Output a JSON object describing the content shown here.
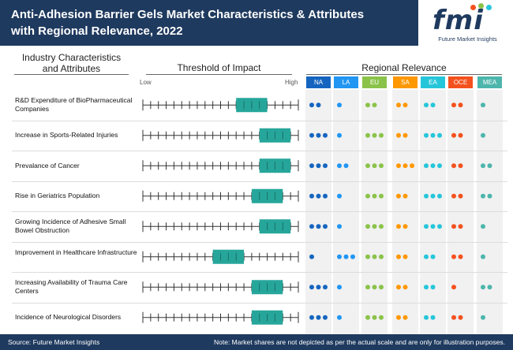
{
  "title": "Anti-Adhesion Barrier Gels Market Characteristics & Attributes with Regional Relevance, 2022",
  "logo": {
    "mark": "fmi",
    "subtitle": "Future Market Insights"
  },
  "sections": {
    "characteristics": "Industry Characteristics and Attributes",
    "threshold": "Threshold of Impact",
    "regional": "Regional Relevance"
  },
  "scale": {
    "low": "Low",
    "high": "High"
  },
  "colors": {
    "header_bg": "#1f3a5f",
    "bar": "#26a69a"
  },
  "chart_data": {
    "type": "table",
    "title": "Anti-Adhesion Barrier Gels Market Characteristics & Attributes with Regional Relevance, 2022",
    "threshold_scale": {
      "min": 0,
      "max": 20,
      "low_label": "Low",
      "high_label": "High"
    },
    "regions": [
      {
        "name": "NA",
        "color": "#1565c0"
      },
      {
        "name": "LA",
        "color": "#2196f3"
      },
      {
        "name": "EU",
        "color": "#8bc34a"
      },
      {
        "name": "SA",
        "color": "#ff9800"
      },
      {
        "name": "EA",
        "color": "#26c6da"
      },
      {
        "name": "OCE",
        "color": "#f4511e"
      },
      {
        "name": "MEA",
        "color": "#4db6ac"
      }
    ],
    "rows": [
      {
        "label": "R&D Expenditure of BioPharmaceutical Companies",
        "threshold": [
          12,
          16
        ],
        "relevance": [
          2,
          1,
          2,
          2,
          2,
          2,
          1
        ]
      },
      {
        "label": "Increase in Sports-Related Injuries",
        "threshold": [
          15,
          19
        ],
        "relevance": [
          3,
          1,
          3,
          2,
          3,
          2,
          1
        ]
      },
      {
        "label": "Prevalance of Cancer",
        "threshold": [
          15,
          19
        ],
        "relevance": [
          3,
          2,
          3,
          3,
          3,
          2,
          2
        ]
      },
      {
        "label": "Rise in Geriatrics Population",
        "threshold": [
          14,
          18
        ],
        "relevance": [
          3,
          1,
          3,
          2,
          3,
          2,
          2
        ]
      },
      {
        "label": "Growing Incidence of Adhesive Small Bowel Obstruction",
        "threshold": [
          15,
          19
        ],
        "relevance": [
          3,
          1,
          3,
          2,
          3,
          2,
          1
        ]
      },
      {
        "label": "Improvement in Healthcare Infrastructure",
        "threshold": [
          9,
          13
        ],
        "relevance": [
          1,
          3,
          3,
          2,
          2,
          2,
          1
        ]
      },
      {
        "label": "Increasing Availability of Trauma Care Centers",
        "threshold": [
          14,
          18
        ],
        "relevance": [
          3,
          1,
          3,
          2,
          2,
          1,
          2
        ]
      },
      {
        "label": "Incidence of Neurological Disorders",
        "threshold": [
          14,
          18
        ],
        "relevance": [
          3,
          1,
          3,
          2,
          2,
          2,
          1
        ]
      }
    ]
  },
  "footer": {
    "source": "Source: Future Market Insights",
    "note": "Note: Market shares are not depicted as per the actual scale and are only for illustration purposes."
  }
}
